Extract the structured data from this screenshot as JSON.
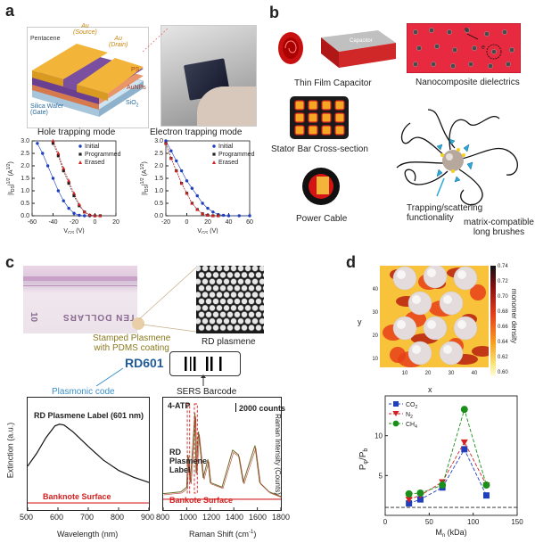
{
  "panels": {
    "a": {
      "label": "a",
      "layers": {
        "source": "Au\n(Source)",
        "drain": "Au\n(Drain)",
        "pentacene": "Pentacene",
        "ps": "PS",
        "aunps": "AuNPs",
        "sio2": "SiO",
        "sio2_sub": "2",
        "wafer": "Silica Wafer\n(Gate)"
      },
      "hole_title": "Hole trapping mode",
      "electron_title": "Electron trapping mode",
      "legend": [
        "Initial",
        "Programmed",
        "Erased"
      ],
      "ylabel": "|I",
      "xlabel": "V",
      "hole_ticks_x": [
        "-60",
        "-40",
        "-20",
        "0",
        "20"
      ],
      "electron_ticks_x": [
        "-20",
        "0",
        "20",
        "40",
        "60"
      ],
      "ticks_y": [
        "0.0",
        "0.5",
        "1.0",
        "1.5",
        "2.0",
        "2.5",
        "3.0"
      ]
    },
    "b": {
      "label": "b",
      "thin_film": "Thin Film Capacitor",
      "capacitor_word": "Capacitor",
      "nanocomposite": "Nanocomposite dielectrics",
      "stator": "Stator Bar Cross-section",
      "power_cable": "Power Cable",
      "trapping": "Trapping/scattering\nfunctionality",
      "brushes": "matrix-compatible\nlong brushes",
      "electron1": "e",
      "electron2": "e"
    },
    "c": {
      "label": "c",
      "banknote_text": "TEN DOLLARS",
      "banknote_num": "10",
      "stamped": "Stamped Plasmene\nwith PDMS coating",
      "rd_plasmene": "RD plasmene",
      "rd601": "RD601",
      "plasmonic_code": "Plasmonic code",
      "sers_barcode": "SERS Barcode",
      "left_title": "RD Plasmene Label (601 nm)",
      "left_bottom": "Banknote Surface",
      "left_ylabel": "Extinction (a.u.)",
      "left_xlabel": "Wavelength (nm)",
      "left_ticks_x": [
        "500",
        "600",
        "700",
        "800",
        "900"
      ],
      "right_title": "4-ATP",
      "right_counts": "2000 counts",
      "right_label": "RD\nPlasmene\nLabel",
      "right_bottom": "Bankote Surface",
      "right_ylabel": "Raman Intensity (Counts)",
      "right_xlabel": "Raman Shift (cm",
      "right_ticks_x": [
        "800",
        "1000",
        "1200",
        "1400",
        "1600",
        "1800"
      ]
    },
    "d": {
      "label": "d",
      "map_ylabel": "y",
      "map_xlabel": "x",
      "map_ticks_x": [
        "10",
        "20",
        "30",
        "40"
      ],
      "map_ticks_y": [
        "10",
        "20",
        "30",
        "40"
      ],
      "colorbar_label": "monomer density",
      "colorbar_ticks": [
        "0.74",
        "0.72",
        "0.70",
        "0.68",
        "0.66",
        "0.64",
        "0.62",
        "0.60"
      ],
      "ylabel": "P",
      "xlabel": "M",
      "xlabel_unit": " (kDa)",
      "ticks_x": [
        "0",
        "50",
        "100",
        "150"
      ],
      "ticks_y": [
        "5",
        "10"
      ],
      "legend": [
        "CO",
        "N",
        "CH"
      ]
    }
  },
  "chart_data": [
    {
      "type": "line",
      "title": "Hole trapping mode",
      "series": [
        {
          "name": "Initial",
          "x": [
            -55,
            -50,
            -45,
            -40,
            -35,
            -30,
            -25,
            -20,
            -15,
            -10,
            -5,
            0
          ],
          "y": [
            2.9,
            2.5,
            2.0,
            1.5,
            1.0,
            0.6,
            0.3,
            0.1,
            0.02,
            0,
            0,
            0
          ]
        },
        {
          "name": "Programmed",
          "x": [
            -40,
            -35,
            -30,
            -25,
            -20,
            -15,
            -10,
            -5,
            0,
            5
          ],
          "y": [
            2.9,
            2.4,
            1.8,
            1.3,
            0.8,
            0.4,
            0.15,
            0.02,
            0,
            0
          ]
        },
        {
          "name": "Erased",
          "x": [
            -40,
            -35,
            -30,
            -25,
            -20,
            -15,
            -10,
            -5,
            0,
            5
          ],
          "y": [
            3.0,
            2.5,
            1.9,
            1.4,
            0.9,
            0.45,
            0.15,
            0.03,
            0,
            0
          ]
        }
      ],
      "xlim": [
        -60,
        20
      ],
      "ylim": [
        0,
        3
      ]
    },
    {
      "type": "line",
      "title": "Electron trapping mode",
      "series": [
        {
          "name": "Initial",
          "x": [
            -20,
            -15,
            -10,
            -5,
            0,
            5,
            10,
            15,
            20,
            25,
            30,
            35,
            40,
            50,
            60
          ],
          "y": [
            3.0,
            2.6,
            2.2,
            1.8,
            1.4,
            1.1,
            0.8,
            0.5,
            0.3,
            0.15,
            0.05,
            0.02,
            0,
            0,
            0
          ]
        },
        {
          "name": "Programmed",
          "x": [
            -20,
            -15,
            -10,
            -5,
            0,
            5,
            10,
            15,
            20,
            25,
            30
          ],
          "y": [
            2.9,
            2.3,
            1.8,
            1.3,
            0.9,
            0.5,
            0.25,
            0.08,
            0.02,
            0,
            0
          ]
        },
        {
          "name": "Erased",
          "x": [
            -20,
            -15,
            -10,
            -5,
            0,
            5,
            10,
            15,
            20,
            25,
            30
          ],
          "y": [
            2.9,
            2.3,
            1.8,
            1.3,
            0.9,
            0.5,
            0.25,
            0.08,
            0.02,
            0,
            0
          ]
        }
      ],
      "xlim": [
        -20,
        60
      ],
      "ylim": [
        0,
        3
      ]
    },
    {
      "type": "line",
      "title": "RD Plasmene Label (601 nm)",
      "xlabel": "Wavelength (nm)",
      "ylabel": "Extinction (a.u.)",
      "series": [
        {
          "name": "RD Plasmene Label (601 nm)",
          "x": [
            500,
            530,
            560,
            590,
            605,
            620,
            650,
            700,
            750,
            800,
            850,
            900
          ],
          "y": [
            0.45,
            0.6,
            0.78,
            0.92,
            0.94,
            0.93,
            0.85,
            0.68,
            0.52,
            0.4,
            0.32,
            0.26
          ]
        },
        {
          "name": "Banknote Surface",
          "x": [
            500,
            900
          ],
          "y": [
            0.02,
            0.02
          ]
        }
      ],
      "xlim": [
        500,
        900
      ]
    },
    {
      "type": "line",
      "title": "4-ATP",
      "xlabel": "Raman Shift (cm-1)",
      "ylabel": "Raman Intensity (Counts)",
      "series": [
        {
          "name": "RD Plasmene Label",
          "x": [
            800,
            950,
            1000,
            1010,
            1030,
            1070,
            1080,
            1100,
            1140,
            1180,
            1200,
            1300,
            1390,
            1440,
            1480,
            1580,
            1620,
            1700,
            1800
          ],
          "y": [
            0.08,
            0.1,
            0.15,
            0.5,
            0.2,
            0.95,
            0.3,
            0.75,
            0.25,
            0.45,
            0.2,
            0.15,
            0.55,
            0.5,
            0.2,
            0.6,
            0.2,
            0.1,
            0.05
          ]
        },
        {
          "name": "Bankote Surface",
          "x": [
            800,
            1800
          ],
          "y": [
            0.02,
            0.02
          ]
        }
      ],
      "xlim": [
        800,
        1800
      ]
    },
    {
      "type": "line",
      "xlabel": "M (kDa)",
      "ylabel": "P/P",
      "series": [
        {
          "name": "CO2",
          "x": [
            27,
            40,
            65,
            90,
            115
          ],
          "y": [
            1.5,
            2.0,
            3.5,
            8.3,
            2.5
          ]
        },
        {
          "name": "N2",
          "x": [
            27,
            40,
            65,
            90,
            115
          ],
          "y": [
            2.0,
            2.5,
            4.2,
            9.2,
            3.8
          ]
        },
        {
          "name": "CH4",
          "x": [
            27,
            40,
            65,
            90,
            115
          ],
          "y": [
            2.7,
            2.8,
            3.8,
            13.3,
            3.8
          ]
        }
      ],
      "xlim": [
        0,
        150
      ],
      "ylim": [
        0,
        15
      ]
    }
  ],
  "colors": {
    "red": "#d42020",
    "blue": "#1f3fbf",
    "green": "#1a8f1a",
    "orange": "#f5a623",
    "cyan": "#3a8fc8",
    "olive": "#a0a020"
  }
}
